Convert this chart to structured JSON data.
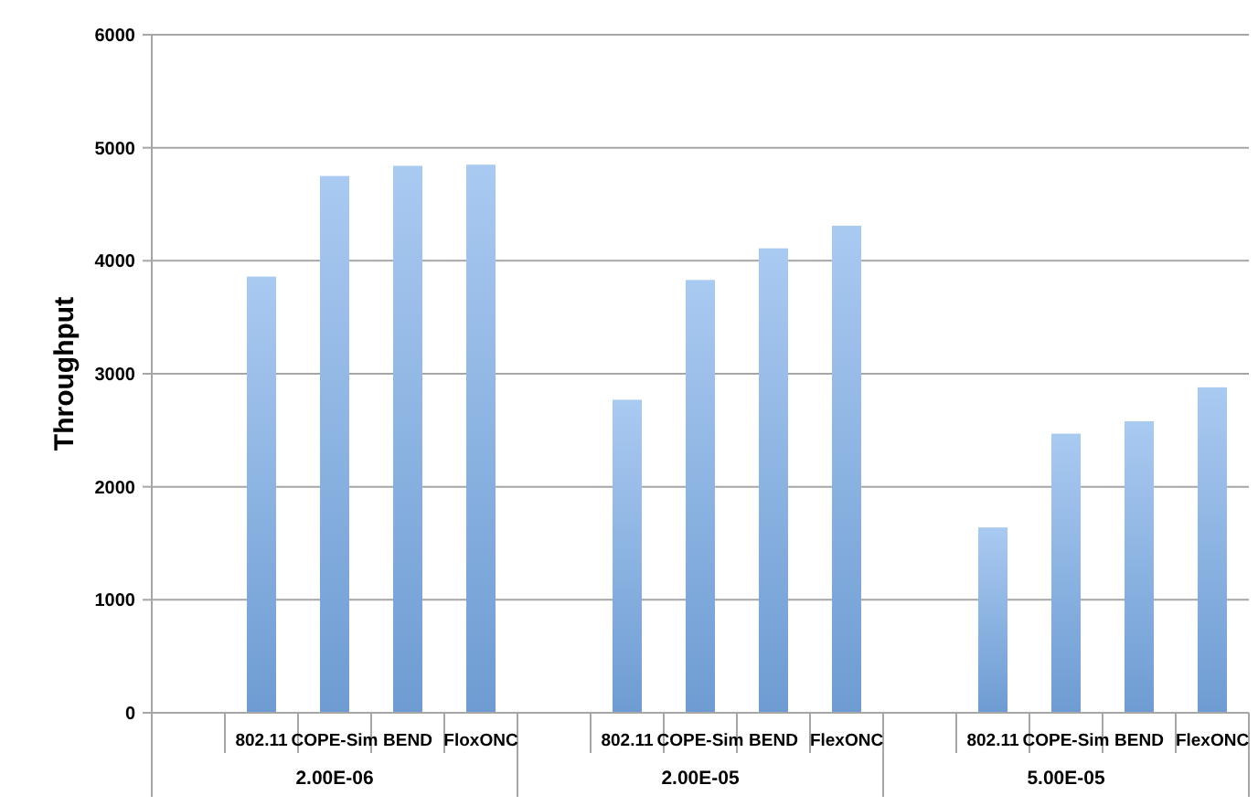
{
  "chart_data": {
    "type": "bar",
    "ylabel": "Throughput",
    "categories": [
      null,
      "802.11",
      "COPE-Sim",
      "BEND",
      "FloxONC",
      null,
      "802.11",
      "COPE-Sim",
      "BEND",
      "FlexONC",
      null,
      "802.11",
      "COPE-Sim",
      "BEND",
      "FlexONC"
    ],
    "values": [
      null,
      3860,
      4750,
      4840,
      4850,
      null,
      2770,
      3830,
      4110,
      4310,
      null,
      1640,
      2470,
      2580,
      2880
    ],
    "color": "#7aaeea",
    "ylim": [
      0,
      6000
    ],
    "yticks": [
      0,
      1000,
      2000,
      3000,
      4000,
      5000,
      6000
    ],
    "grid": "y",
    "annotations": [
      "2.00E-06",
      "2.00E-05",
      "5.00E-05"
    ]
  }
}
